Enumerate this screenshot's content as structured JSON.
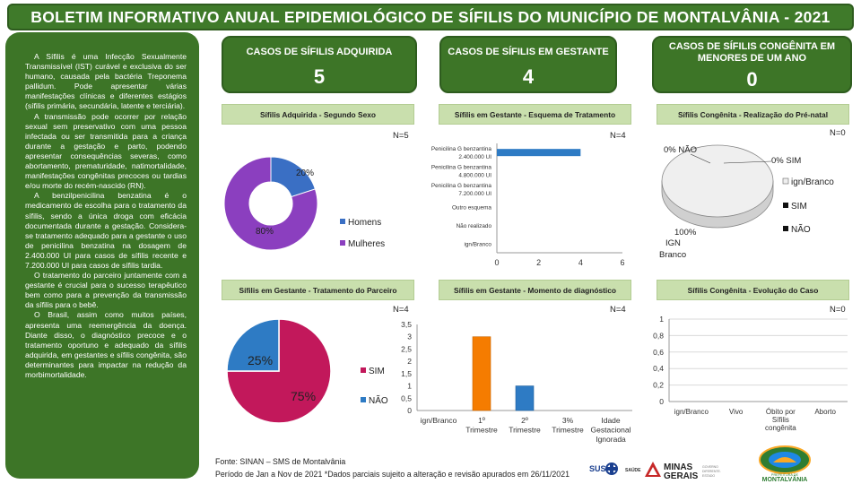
{
  "header": {
    "title": "BOLETIM INFORMATIVO ANUAL EPIDEMIOLÓGICO DE SÍFILIS DO MUNICÍPIO DE MONTALVÂNIA - 2021"
  },
  "sidebar": {
    "paragraphs": [
      "A Sífilis é uma Infecção Sexualmente Transmissível (IST) curável e exclusiva do ser humano, causada pela bactéria Treponema pallidum. Pode apresentar várias manifestações clínicas e diferentes estágios (sífilis primária, secundária, latente e terciária).",
      "A transmissão pode ocorrer por relação sexual sem preservativo com uma pessoa infectada ou ser transmitida para a criança durante a gestação e parto, podendo apresentar consequências severas, como abortamento, prematuridade, natimortalidade, manifestações congênitas precoces ou tardias e/ou morte do recém-nascido (RN).",
      "A benzilpenicilina benzatina é o medicamento de escolha para o tratamento da sífilis, sendo a única droga com eficácia documentada durante a gestação. Considera-se tratamento adequado para a gestante o uso de penicilina benzatina na dosagem de 2.400.000 UI para casos de sífilis recente e 7.200.000 UI para casos de sífilis tardia.",
      "O tratamento do parceiro juntamente com a gestante é crucial para o sucesso terapêutico bem como para a prevenção da transmissão da sífilis para o bebê.",
      "O Brasil, assim como muitos países, apresenta uma reemergência da doença. Diante disso, o diagnóstico precoce e o tratamento oportuno e adequado da sífilis adquirida, em gestantes e sífilis congênita, são determinantes para impactar na redução da morbimortalidade."
    ]
  },
  "kpis": [
    {
      "label": "CASOS DE SÍFILIS ADQUIRIDA",
      "value": "5"
    },
    {
      "label": "CASOS DE SÍFILIS EM GESTANTE",
      "value": "4"
    },
    {
      "label": "CASOS DE SÍFILIS CONGÊNITA EM MENORES DE UM ANO",
      "value": "0"
    }
  ],
  "charts": {
    "c1": {
      "title": "Sífilis Adquirida - Segundo Sexo",
      "n": "N=5",
      "legend": [
        "Homens",
        "Mulheres"
      ],
      "labels": [
        "20%",
        "80%"
      ]
    },
    "c2": {
      "title": "Sífilis em Gestante - Esquema de Tratamento",
      "n": "N=4",
      "categories": [
        "Penicilina G benzantina 2.400.000 UI",
        "Penicilina G benzantina 4.800.000 UI",
        "Penicilina G benzantina 7.200.000 UI",
        "Outro esquema",
        "Não realizado",
        "ign/Branco"
      ],
      "ticks": [
        "0",
        "2",
        "4",
        "6"
      ]
    },
    "c3": {
      "title": "Sífilis Congênita - Realização do Pré-natal",
      "n": "N=0",
      "labels": [
        "0% NÃO",
        "0% SIM",
        "100%",
        "IGN",
        "Branco"
      ],
      "legend": [
        "ign/Branco",
        "SIM",
        "NÃO"
      ]
    },
    "c4": {
      "title": "Sífilis em Gestante - Tratamento do Parceiro",
      "n": "N=4",
      "labels": [
        "25%",
        "75%"
      ],
      "legend": [
        "SIM",
        "NÃO"
      ]
    },
    "c5": {
      "title": "Sífilis em Gestante - Momento de diagnóstico",
      "n": "N=4",
      "yticks": [
        "3,5",
        "3",
        "2,5",
        "2",
        "1,5",
        "1",
        "0,5",
        "0"
      ],
      "categories": [
        "ign/Branco",
        "1º",
        "Trimestre",
        "2º",
        "Trimestre",
        "3%",
        "Trimestre",
        "Idade",
        "Gestacional",
        "Ignorada"
      ]
    },
    "c6": {
      "title": "Sífilis Congênita - Evolução do Caso",
      "n": "N=0",
      "yticks": [
        "1",
        "0,8",
        "0,6",
        "0,4",
        "0,2",
        "0"
      ],
      "categories": [
        "ign/Branco",
        "Vivo",
        "Óbito por",
        "Sífilis",
        "congênita",
        "Aborto"
      ]
    }
  },
  "chart_data": [
    {
      "type": "pie",
      "title": "Sífilis Adquirida - Segundo Sexo",
      "categories": [
        "Homens",
        "Mulheres"
      ],
      "values": [
        20,
        80
      ],
      "unit": "%"
    },
    {
      "type": "bar",
      "title": "Sífilis em Gestante - Esquema de Tratamento",
      "categories": [
        "Penicilina G benzantina 2.400.000 UI",
        "Penicilina G benzantina 4.800.000 UI",
        "Penicilina G benzantina 7.200.000 UI",
        "Outro esquema",
        "Não realizado",
        "ign/Branco"
      ],
      "values": [
        4,
        0,
        0,
        0,
        0,
        0
      ],
      "xlim": [
        0,
        6
      ],
      "orientation": "horizontal"
    },
    {
      "type": "pie",
      "title": "Sífilis Congênita - Realização do Pré-natal",
      "categories": [
        "ign/Branco",
        "SIM",
        "NÃO"
      ],
      "values": [
        100,
        0,
        0
      ],
      "unit": "%"
    },
    {
      "type": "pie",
      "title": "Sífilis em Gestante - Tratamento do Parceiro",
      "categories": [
        "SIM",
        "NÃO"
      ],
      "values": [
        75,
        25
      ],
      "unit": "%"
    },
    {
      "type": "bar",
      "title": "Sífilis em Gestante - Momento de diagnóstico",
      "categories": [
        "ign/Branco",
        "1º Trimestre",
        "2º Trimestre",
        "3% Trimestre",
        "Idade Gestacional Ignorada"
      ],
      "values": [
        0,
        3,
        1,
        0,
        0
      ],
      "ylim": [
        0,
        3.5
      ]
    },
    {
      "type": "bar",
      "title": "Sífilis Congênita - Evolução do Caso",
      "categories": [
        "ign/Branco",
        "Vivo",
        "Óbito por Sífilis congênita",
        "Aborto"
      ],
      "values": [
        0,
        0,
        0,
        0
      ],
      "ylim": [
        0,
        1
      ]
    }
  ],
  "footer": {
    "source": "Fonte: SINAN – SMS de Montalvânia",
    "period": "Período de Jan a Nov de 2021 *Dados parciais sujeito a alteração e revisão apurados em 26/11/2021",
    "logos": [
      "SUS",
      "SAÚDE",
      "MINAS GERAIS",
      "GOVERNO DIFERENTE. ESTADO EFICIENTE.",
      "MONTALVÂNIA",
      "PREFEITURA DE"
    ]
  }
}
